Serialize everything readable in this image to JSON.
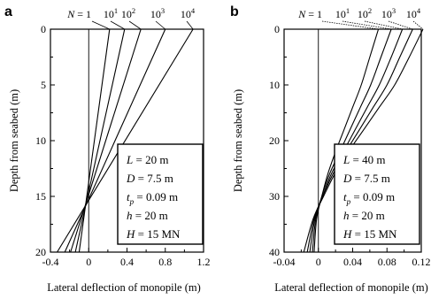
{
  "chart_data": [
    {
      "panel": "a",
      "type": "line",
      "xlabel": "Lateral deflection of monopile (m)",
      "ylabel": "Depth from seabed (m)",
      "xlim": [
        -0.4,
        1.2
      ],
      "ylim": [
        0,
        20
      ],
      "y_inverted": true,
      "xticks": [
        "-0.4",
        "0",
        "0.4",
        "0.8",
        "1.2"
      ],
      "yticks": [
        "0",
        "5",
        "10",
        "15",
        "20"
      ],
      "n_label_prefix": "N = ",
      "series": [
        {
          "name": "1",
          "label_base": "1",
          "label_exp": "",
          "x": [
            0.218,
            -0.1
          ],
          "y": [
            0,
            20
          ]
        },
        {
          "name": "10^1",
          "label_base": "10",
          "label_exp": "1",
          "x": [
            0.375,
            -0.14
          ],
          "y": [
            0,
            20
          ]
        },
        {
          "name": "10^2",
          "label_base": "10",
          "label_exp": "2",
          "x": [
            0.545,
            -0.19
          ],
          "y": [
            0,
            20
          ]
        },
        {
          "name": "10^3",
          "label_base": "10",
          "label_exp": "3",
          "x": [
            0.8,
            -0.25
          ],
          "y": [
            0,
            20
          ]
        },
        {
          "name": "10^4",
          "label_base": "10",
          "label_exp": "4",
          "x": [
            1.09,
            -0.33
          ],
          "y": [
            0,
            20
          ]
        }
      ],
      "params": [
        {
          "var": "L",
          "sub": "",
          "value": " = 20 m"
        },
        {
          "var": "D",
          "sub": "",
          "value": " = 7.5 m"
        },
        {
          "var": "t",
          "sub": "p",
          "value": " = 0.09 m"
        },
        {
          "var": "h",
          "sub": "",
          "value": " = 20 m"
        },
        {
          "var": "H",
          "sub": "",
          "value": " = 15 MN"
        }
      ]
    },
    {
      "panel": "b",
      "type": "line",
      "xlabel": "Lateral deflection of monopile (m)",
      "ylabel": "Depth from seabed (m)",
      "xlim": [
        -0.04,
        0.12
      ],
      "ylim": [
        0,
        40
      ],
      "y_inverted": true,
      "xticks": [
        "-0.04",
        "0",
        "0.04",
        "0.08",
        "0.12"
      ],
      "yticks": [
        "0",
        "10",
        "20",
        "30",
        "40"
      ],
      "n_label_prefix": "N = ",
      "series": [
        {
          "name": "1",
          "label_base": "1",
          "label_exp": "",
          "x": [
            0.07,
            0.06,
            0.05,
            0.04,
            0.03,
            0.02,
            0.011,
            0.004,
            -0.002,
            -0.005
          ],
          "y": [
            0,
            5,
            10,
            14,
            18,
            22,
            26,
            30,
            34,
            40
          ]
        },
        {
          "name": "10^1",
          "label_base": "10",
          "label_exp": "1",
          "x": [
            0.085,
            0.073,
            0.061,
            0.049,
            0.037,
            0.025,
            0.013,
            0.004,
            -0.003,
            -0.007
          ],
          "y": [
            0,
            5,
            10,
            14,
            18,
            22,
            26,
            30,
            34,
            40
          ]
        },
        {
          "name": "10^2",
          "label_base": "10",
          "label_exp": "2",
          "x": [
            0.098,
            0.085,
            0.071,
            0.057,
            0.043,
            0.029,
            0.015,
            0.005,
            -0.004,
            -0.01
          ],
          "y": [
            0,
            5,
            10,
            14,
            18,
            22,
            26,
            30,
            34,
            40
          ]
        },
        {
          "name": "10^3",
          "label_base": "10",
          "label_exp": "3",
          "x": [
            0.11,
            0.095,
            0.08,
            0.064,
            0.048,
            0.032,
            0.017,
            0.005,
            -0.005,
            -0.013
          ],
          "y": [
            0,
            5,
            10,
            14,
            18,
            22,
            26,
            30,
            34,
            40
          ]
        },
        {
          "name": "10^4",
          "label_base": "10",
          "label_exp": "4",
          "x": [
            0.122,
            0.106,
            0.089,
            0.071,
            0.053,
            0.035,
            0.019,
            0.006,
            -0.006,
            -0.017
          ],
          "y": [
            0,
            5,
            10,
            14,
            18,
            22,
            26,
            30,
            34,
            40
          ]
        }
      ],
      "params": [
        {
          "var": "L",
          "sub": "",
          "value": " = 40 m"
        },
        {
          "var": "D",
          "sub": "",
          "value": " = 7.5 m"
        },
        {
          "var": "t",
          "sub": "p",
          "value": " = 0.09 m"
        },
        {
          "var": "h",
          "sub": "",
          "value": " = 20 m"
        },
        {
          "var": "H",
          "sub": "",
          "value": " = 15 MN"
        }
      ]
    }
  ]
}
